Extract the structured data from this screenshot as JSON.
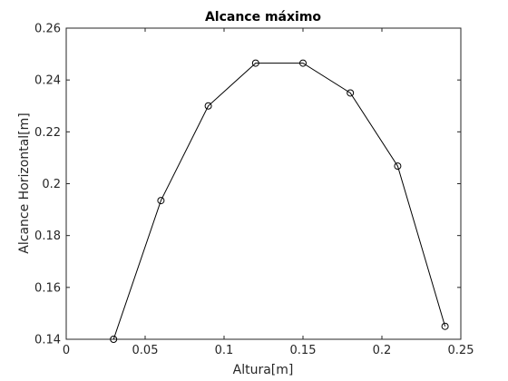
{
  "chart_data": {
    "type": "line",
    "title": "Alcance máximo",
    "xlabel": "Altura[m]",
    "ylabel": "Alcance Horizontal[m]",
    "xlim": [
      0,
      0.25
    ],
    "ylim": [
      0.14,
      0.26
    ],
    "xticks": [
      0,
      0.05,
      0.1,
      0.15,
      0.2,
      0.25
    ],
    "xtick_labels": [
      "0",
      "0.05",
      "0.1",
      "0.15",
      "0.2",
      "0.25"
    ],
    "yticks": [
      0.14,
      0.16,
      0.18,
      0.2,
      0.22,
      0.24,
      0.26
    ],
    "ytick_labels": [
      "0.14",
      "0.16",
      "0.18",
      "0.2",
      "0.22",
      "0.24",
      "0.26"
    ],
    "grid": false,
    "marker": "circle",
    "series": [
      {
        "x": [
          0.03,
          0.06,
          0.09,
          0.12,
          0.15,
          0.18,
          0.21,
          0.24
        ],
        "y": [
          0.14,
          0.1935,
          0.23,
          0.2465,
          0.2465,
          0.235,
          0.2068,
          0.145
        ],
        "color": "#000000"
      }
    ]
  }
}
